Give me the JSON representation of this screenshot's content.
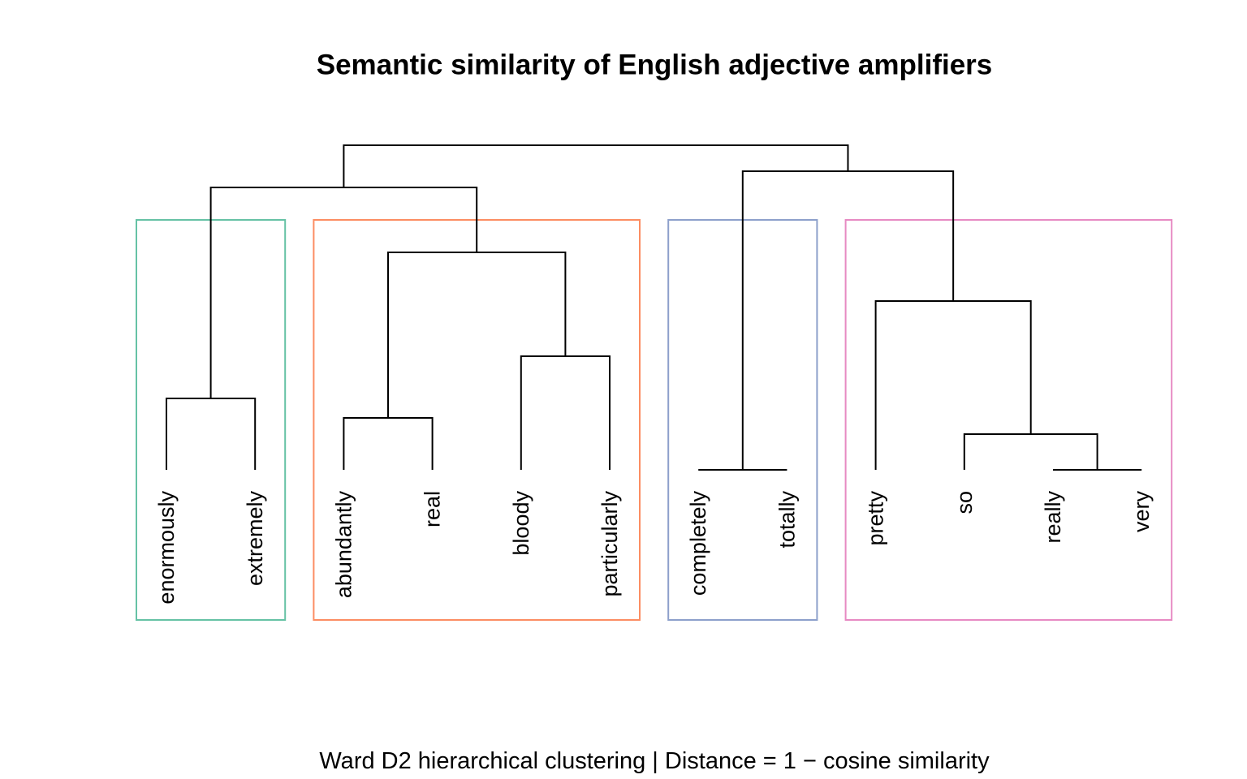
{
  "chart_data": {
    "type": "dendrogram",
    "title": "Semantic similarity of English adjective amplifiers",
    "subtitle": "Ward D2 hierarchical clustering | Distance = 1 − cosine similarity",
    "leaves": [
      "enormously",
      "extremely",
      "abundantly",
      "real",
      "bloody",
      "particularly",
      "completely",
      "totally",
      "pretty",
      "so",
      "really",
      "very"
    ],
    "merges": [
      {
        "left": {
          "leaf": 0
        },
        "right": {
          "leaf": 1
        },
        "height": 0.22
      },
      {
        "left": {
          "leaf": 2
        },
        "right": {
          "leaf": 3
        },
        "height": 0.16
      },
      {
        "left": {
          "leaf": 4
        },
        "right": {
          "leaf": 5
        },
        "height": 0.35
      },
      {
        "left": {
          "merge": 1
        },
        "right": {
          "merge": 2
        },
        "height": 0.67
      },
      {
        "left": {
          "merge": 0
        },
        "right": {
          "merge": 3
        },
        "height": 0.87
      },
      {
        "left": {
          "leaf": 6
        },
        "right": {
          "leaf": 7
        },
        "height": 0
      },
      {
        "left": {
          "leaf": 10
        },
        "right": {
          "leaf": 11
        },
        "height": 0
      },
      {
        "left": {
          "leaf": 9
        },
        "right": {
          "merge": 6
        },
        "height": 0.11
      },
      {
        "left": {
          "leaf": 8
        },
        "right": {
          "merge": 7
        },
        "height": 0.52
      },
      {
        "left": {
          "merge": 5
        },
        "right": {
          "merge": 8
        },
        "height": 0.92
      },
      {
        "left": {
          "merge": 4
        },
        "right": {
          "merge": 9
        },
        "height": 1.0
      }
    ],
    "ylim": [
      0,
      1.0
    ],
    "clusters": [
      {
        "leaves": [
          0,
          1
        ],
        "color": "#66c2a5"
      },
      {
        "leaves": [
          2,
          5
        ],
        "color": "#fc8d62"
      },
      {
        "leaves": [
          6,
          7
        ],
        "color": "#8da0cb"
      },
      {
        "leaves": [
          8,
          11
        ],
        "color": "#e78ac3"
      }
    ]
  }
}
